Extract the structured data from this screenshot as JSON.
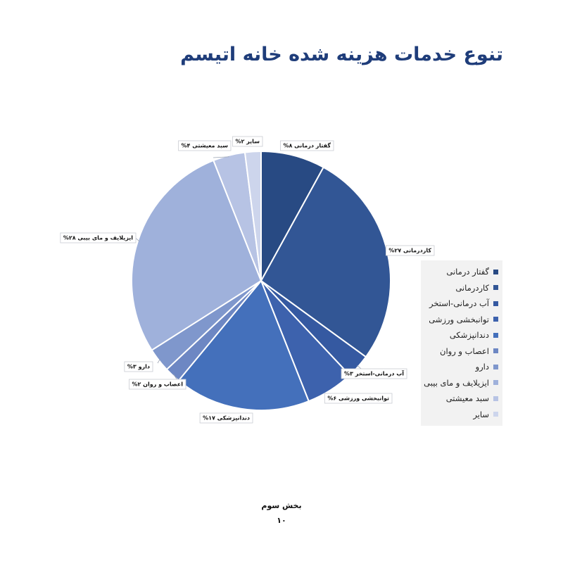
{
  "page": {
    "title": "تنوع خدمات هزینه شده خانه اتیسم",
    "footer_section": "بخش سوم",
    "footer_page": "۱۰"
  },
  "chart_data": {
    "type": "pie",
    "title": "",
    "categories": [
      "گفتار درمانی",
      "کاردرمانی",
      "آب درمانی-استخر",
      "توانبخشی ورزشی",
      "دندانپزشکی",
      "اعصاب و روان",
      "دارو",
      "ایزیلایف و مای بیبی",
      "سبد معیشتی",
      "سایر"
    ],
    "values": [
      8,
      27,
      3,
      6,
      17,
      2,
      3,
      28,
      4,
      2
    ],
    "data_labels": [
      "گفتار درمانی ۸%",
      "کاردرمانی ۲۷%",
      "آب درمانی-استخر ۳%",
      "توانبخشی ورزشی ۶%",
      "دندانپزشکی ۱۷%",
      "اعصاب و روان ۲%",
      "دارو ۳%",
      "ایزیلایف و مای بیبی ۲۸%",
      "سبد معیشتی ۴%",
      "سایر ۲%"
    ],
    "colors": [
      "#284a83",
      "#325695",
      "#3559a1",
      "#3d62ad",
      "#4470bb",
      "#6d87c3",
      "#7f97cc",
      "#9fb1db",
      "#b7c3e4",
      "#cdd5ec"
    ],
    "legend_position": "right",
    "start_angle": "top, clockwise"
  }
}
